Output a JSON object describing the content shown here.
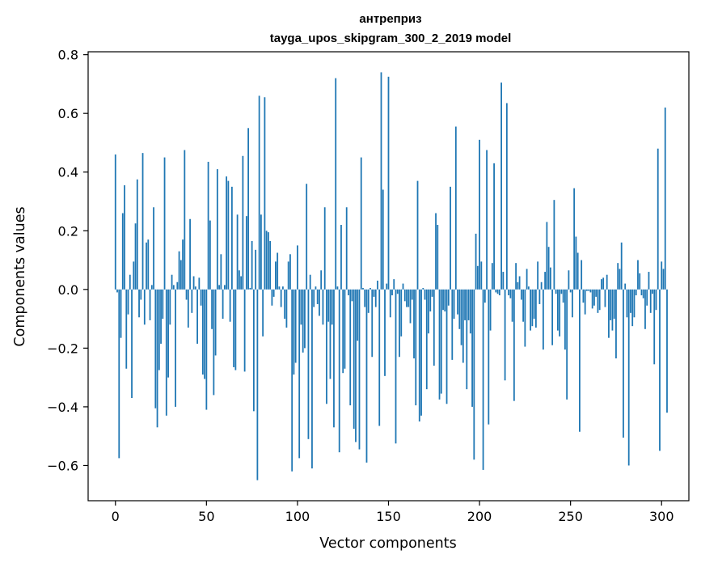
{
  "chart_data": {
    "type": "bar",
    "title_line1": "антреприз",
    "title_line2": "tayga_upos_skipgram_300_2_2019 model",
    "xlabel": "Vector components",
    "ylabel": "Components values",
    "xlim": [
      -15,
      315
    ],
    "ylim": [
      -0.72,
      0.81
    ],
    "x_ticks": [
      0,
      50,
      100,
      150,
      200,
      250,
      300
    ],
    "x_tick_labels": [
      "0",
      "50",
      "100",
      "150",
      "200",
      "250",
      "300"
    ],
    "y_ticks": [
      -0.6,
      -0.4,
      -0.2,
      0.0,
      0.2,
      0.4,
      0.6,
      0.8
    ],
    "y_tick_labels": [
      "−0.6",
      "−0.4",
      "−0.2",
      "0.0",
      "0.2",
      "0.4",
      "0.6",
      "0.8"
    ],
    "bar_color": "#1f77b4",
    "values": [
      0.46,
      -0.01,
      -0.575,
      -0.165,
      0.26,
      0.355,
      -0.27,
      -0.085,
      0.05,
      -0.37,
      0.095,
      0.225,
      0.375,
      -0.095,
      -0.035,
      0.465,
      -0.12,
      0.16,
      0.17,
      -0.105,
      0.015,
      0.28,
      -0.405,
      -0.47,
      -0.275,
      -0.185,
      -0.1,
      0.45,
      -0.43,
      -0.3,
      -0.12,
      0.05,
      0.015,
      -0.4,
      0.025,
      0.13,
      0.1,
      0.17,
      0.475,
      -0.035,
      -0.13,
      0.24,
      -0.08,
      0.045,
      0.01,
      -0.185,
      0.04,
      -0.055,
      -0.29,
      -0.305,
      -0.41,
      0.435,
      0.235,
      -0.135,
      -0.36,
      -0.225,
      0.41,
      0.015,
      0.12,
      -0.1,
      0.015,
      0.385,
      0.37,
      -0.11,
      0.35,
      -0.265,
      -0.275,
      0.255,
      0.065,
      0.045,
      0.455,
      -0.28,
      0.25,
      0.55,
      0.005,
      0.165,
      -0.415,
      0.135,
      -0.65,
      0.66,
      0.255,
      -0.16,
      0.655,
      0.2,
      0.195,
      0.165,
      -0.055,
      -0.025,
      0.095,
      0.125,
      0.01,
      -0.06,
      0.01,
      -0.1,
      -0.13,
      0.095,
      0.12,
      -0.62,
      -0.29,
      -0.25,
      0.15,
      -0.575,
      -0.12,
      -0.215,
      -0.2,
      0.36,
      -0.51,
      0.05,
      -0.61,
      -0.06,
      0.01,
      -0.05,
      -0.09,
      0.065,
      -0.12,
      0.28,
      -0.39,
      -0.11,
      -0.305,
      -0.12,
      -0.47,
      0.72,
      0.01,
      -0.555,
      0.22,
      -0.285,
      -0.27,
      0.28,
      -0.02,
      -0.395,
      -0.04,
      -0.475,
      -0.52,
      -0.175,
      -0.545,
      0.45,
      0.005,
      -0.06,
      -0.59,
      -0.08,
      0.005,
      -0.23,
      -0.025,
      -0.06,
      0.03,
      -0.465,
      0.74,
      0.34,
      -0.295,
      0.02,
      0.725,
      -0.095,
      -0.02,
      0.035,
      -0.525,
      -0.015,
      -0.23,
      -0.16,
      0.02,
      -0.04,
      -0.06,
      -0.06,
      -0.115,
      -0.035,
      -0.235,
      -0.395,
      0.37,
      -0.45,
      -0.43,
      0.005,
      -0.035,
      -0.34,
      -0.15,
      -0.075,
      -0.025,
      -0.26,
      0.26,
      0.22,
      -0.375,
      -0.355,
      -0.07,
      -0.075,
      -0.39,
      -0.055,
      0.35,
      -0.24,
      -0.1,
      0.555,
      -0.085,
      -0.135,
      -0.19,
      -0.25,
      -0.105,
      -0.34,
      -0.105,
      -0.15,
      -0.4,
      -0.58,
      0.19,
      0.08,
      0.51,
      0.095,
      -0.615,
      -0.045,
      0.475,
      -0.46,
      -0.14,
      0.09,
      0.43,
      -0.01,
      -0.015,
      -0.02,
      0.705,
      0.06,
      -0.31,
      0.635,
      -0.02,
      -0.03,
      -0.11,
      -0.38,
      0.09,
      0.025,
      0.045,
      -0.035,
      -0.11,
      -0.195,
      0.07,
      0.01,
      -0.14,
      -0.125,
      -0.1,
      -0.13,
      0.095,
      -0.05,
      0.025,
      -0.205,
      0.06,
      0.23,
      0.145,
      0.075,
      -0.19,
      0.305,
      -0.015,
      -0.14,
      -0.16,
      -0.015,
      -0.045,
      -0.205,
      -0.375,
      0.065,
      -0.01,
      -0.095,
      0.345,
      0.18,
      0.125,
      -0.485,
      0.1,
      -0.045,
      -0.085,
      -0.005,
      -0.005,
      -0.01,
      -0.065,
      -0.055,
      -0.025,
      -0.08,
      -0.07,
      0.035,
      0.04,
      -0.06,
      0.05,
      -0.165,
      -0.105,
      -0.14,
      -0.1,
      -0.235,
      0.09,
      0.07,
      0.16,
      -0.505,
      0.02,
      -0.095,
      -0.6,
      -0.08,
      -0.125,
      -0.095,
      -0.02,
      0.1,
      0.055,
      -0.02,
      -0.03,
      -0.135,
      -0.055,
      0.06,
      -0.08,
      -0.015,
      -0.255,
      -0.07,
      0.48,
      -0.55,
      0.095,
      0.07,
      0.62,
      -0.42
    ]
  }
}
